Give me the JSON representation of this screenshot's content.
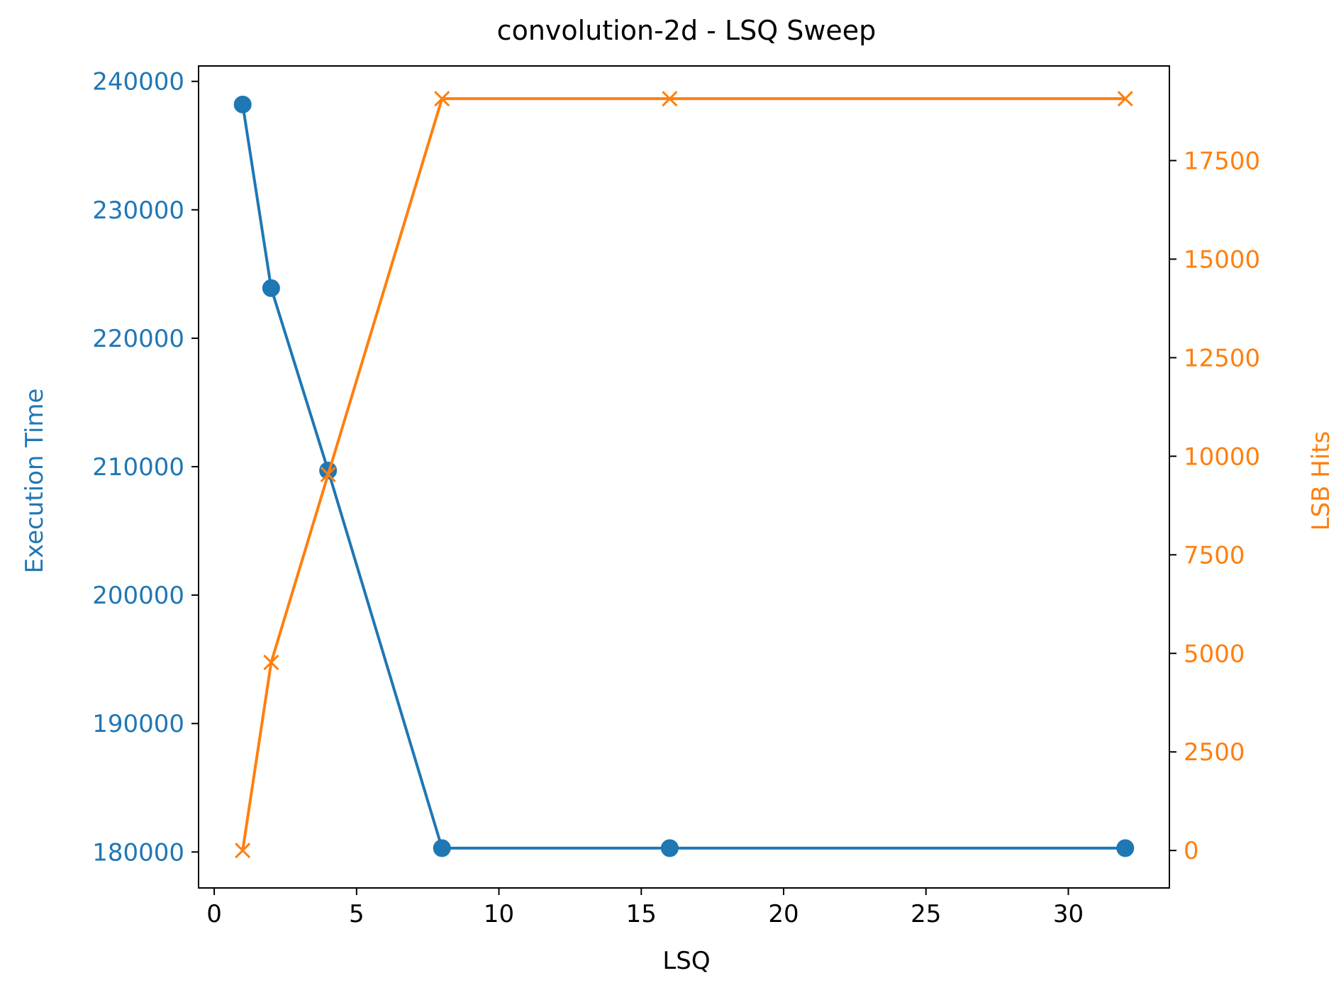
{
  "chart_data": {
    "type": "line",
    "title": "convolution-2d - LSQ Sweep",
    "xlabel": "LSQ",
    "ylabel_left": "Execution Time",
    "ylabel_right": "LSB Hits",
    "x": [
      1,
      2,
      4,
      8,
      16,
      32
    ],
    "xlim": [
      -0.55,
      33.55
    ],
    "ylim_left": [
      177200,
      241200
    ],
    "ylim_right": [
      -950,
      19900
    ],
    "xticks": [
      0,
      5,
      10,
      15,
      20,
      25,
      30
    ],
    "yticks_left": [
      180000,
      190000,
      200000,
      210000,
      220000,
      230000,
      240000
    ],
    "yticks_right": [
      0,
      2500,
      5000,
      7500,
      10000,
      12500,
      15000,
      17500
    ],
    "grid": false,
    "legend": "none",
    "series": [
      {
        "name": "Execution Time",
        "axis": "left",
        "marker": "circle",
        "color": "#1f77b4",
        "values": [
          238200,
          223900,
          209700,
          180300,
          180300,
          180300
        ]
      },
      {
        "name": "LSB Hits",
        "axis": "right",
        "marker": "x",
        "color": "#ff7f0e",
        "values": [
          0,
          4770,
          9540,
          19070,
          19070,
          19070
        ]
      }
    ]
  }
}
